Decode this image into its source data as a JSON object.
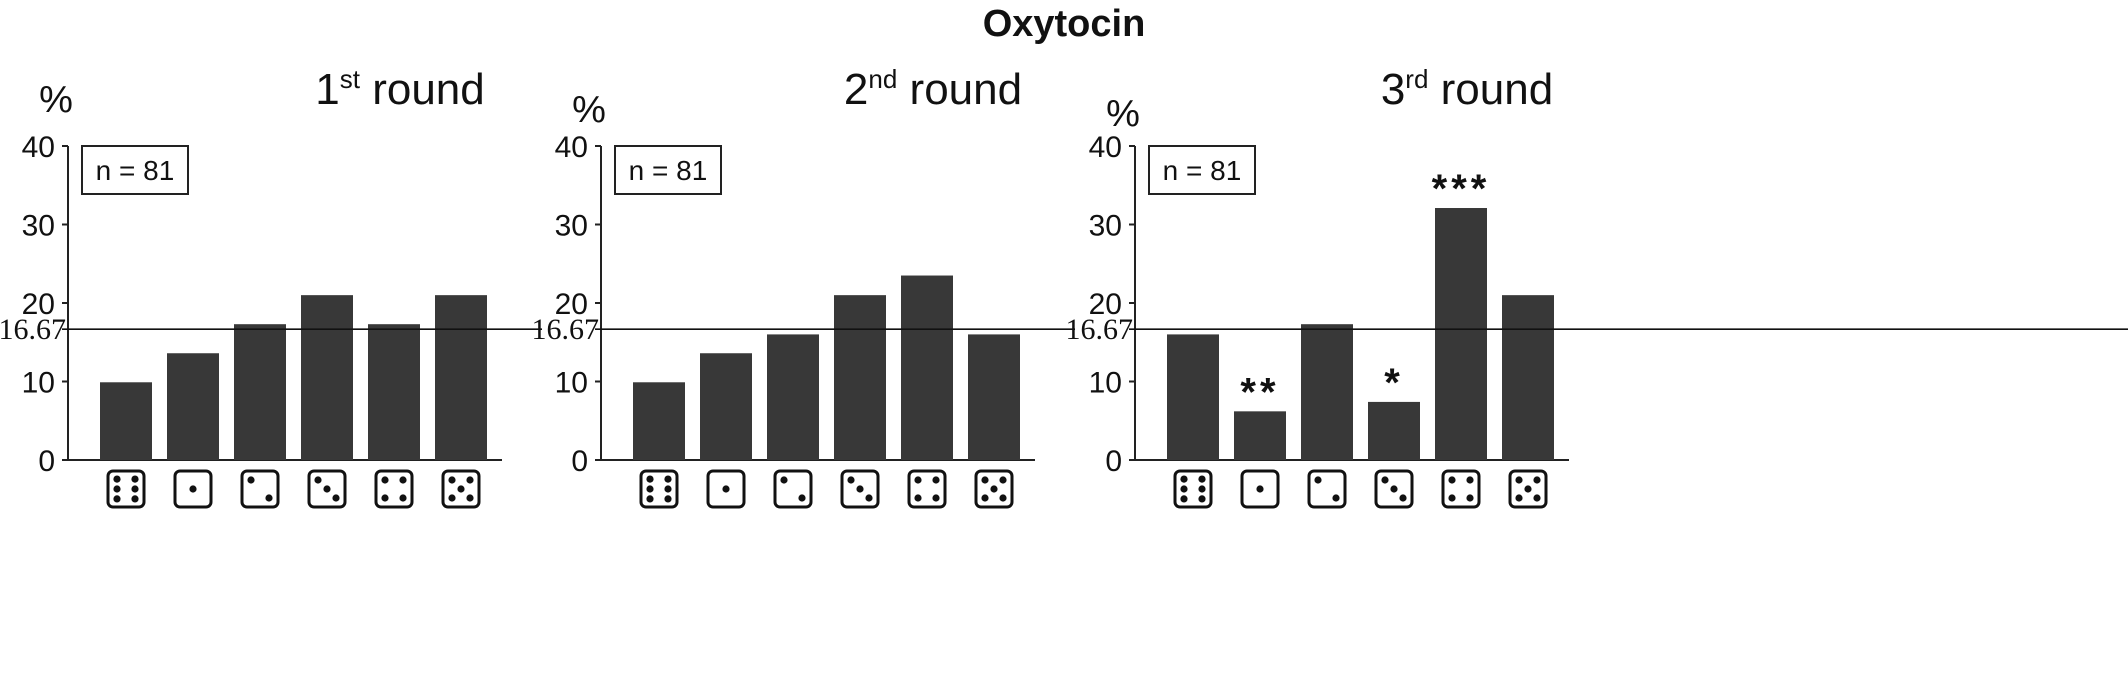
{
  "title": "Oxytocin",
  "chart_data": [
    {
      "type": "bar",
      "title_main": "1",
      "title_sup": "st",
      "title_rest": " round",
      "ylabel": "%",
      "ylim": [
        0,
        40
      ],
      "yticks": [
        "0",
        "10",
        "20",
        "30",
        "40"
      ],
      "reference_line": {
        "value": 16.67,
        "label": "16.67"
      },
      "annotation": "n = 81",
      "categories": [
        "die-6",
        "die-1",
        "die-2",
        "die-3",
        "die-4",
        "die-5"
      ],
      "values": [
        9.9,
        13.6,
        17.3,
        21.0,
        17.3,
        21.0
      ],
      "significance": [
        "",
        "",
        "",
        "",
        "",
        ""
      ]
    },
    {
      "type": "bar",
      "title_main": "2",
      "title_sup": "nd",
      "title_rest": " round",
      "ylabel": "%",
      "ylim": [
        0,
        40
      ],
      "yticks": [
        "0",
        "10",
        "20",
        "30",
        "40"
      ],
      "reference_line": {
        "value": 16.67,
        "label": "16.67"
      },
      "annotation": "n = 81",
      "categories": [
        "die-6",
        "die-1",
        "die-2",
        "die-3",
        "die-4",
        "die-5"
      ],
      "values": [
        9.9,
        13.6,
        16.0,
        21.0,
        23.5,
        16.0
      ],
      "significance": [
        "",
        "",
        "",
        "",
        "",
        ""
      ]
    },
    {
      "type": "bar",
      "title_main": "3",
      "title_sup": "rd",
      "title_rest": " round",
      "ylabel": "%",
      "ylim": [
        0,
        40
      ],
      "yticks": [
        "0",
        "10",
        "20",
        "30",
        "40"
      ],
      "reference_line": {
        "value": 16.67,
        "label": "16.67"
      },
      "annotation": "n = 81",
      "categories": [
        "die-6",
        "die-1",
        "die-2",
        "die-3",
        "die-4",
        "die-5"
      ],
      "values": [
        16.0,
        6.2,
        17.3,
        7.4,
        32.1,
        21.0
      ],
      "significance": [
        "",
        "**",
        "",
        "*",
        "***",
        ""
      ]
    }
  ],
  "colors": {
    "bar": "#383838",
    "axis": "#222222"
  }
}
